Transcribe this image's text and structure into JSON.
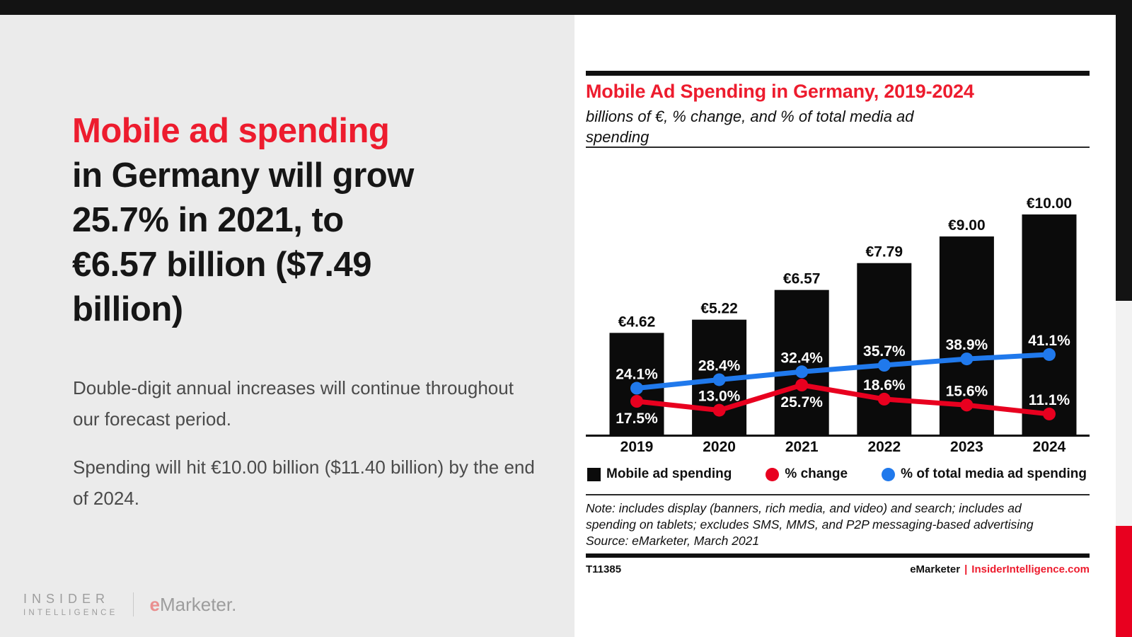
{
  "colors": {
    "accent_red": "#ed1c2e",
    "chart_red": "#e8001f",
    "chart_blue": "#2079ec",
    "bar_black": "#0b0b0b",
    "panel_gray": "#ebebeb"
  },
  "left_panel": {
    "headline_highlight": "Mobile ad spending",
    "headline_rest_lines": [
      "in Germany will grow",
      "25.7% in 2021, to",
      "€6.57 billion ($7.49",
      "billion)"
    ],
    "paragraphs": [
      "Double-digit annual increases will continue throughout our forecast period.",
      "Spending will hit €10.00 billion ($11.40 billion) by the end of 2024."
    ],
    "logo": {
      "insider": "INSIDER",
      "intelligence": "INTELLIGENCE",
      "emarketer_e": "e",
      "emarketer_rest": "Marketer."
    }
  },
  "chart_panel": {
    "title": "Mobile Ad Spending in Germany, 2019-2024",
    "subtitle": "billions of €, % change, and % of total media ad spending",
    "subtitle_lines": [
      "billions of €, % change, and % of total media ad",
      "spending"
    ],
    "legend": [
      {
        "label": "Mobile ad spending",
        "color": "#0b0b0b",
        "shape": "square"
      },
      {
        "label": "% change",
        "color": "#e8001f",
        "shape": "circle"
      },
      {
        "label": "% of total media ad spending",
        "color": "#2079ec",
        "shape": "circle"
      }
    ],
    "note_lines": [
      "Note: includes display (banners, rich media, and video) and search; includes ad",
      "spending on tablets; excludes SMS, MMS, and P2P messaging-based advertising",
      "Source: eMarketer, March 2021"
    ],
    "footer": {
      "chart_id": "T11385",
      "brand": "eMarketer",
      "divider": "|",
      "site": "InsiderIntelligence.com"
    }
  },
  "chart_data": {
    "type": "bar+line",
    "categories": [
      "2019",
      "2020",
      "2021",
      "2022",
      "2023",
      "2024"
    ],
    "series": [
      {
        "name": "Mobile ad spending",
        "type": "bar",
        "unit": "billions of €",
        "color": "#0b0b0b",
        "values": [
          4.62,
          5.22,
          6.57,
          7.79,
          9.0,
          10.0
        ],
        "labels": [
          "€4.62",
          "€5.22",
          "€6.57",
          "€7.79",
          "€9.00",
          "€10.00"
        ]
      },
      {
        "name": "% change",
        "type": "line",
        "color": "#e8001f",
        "values": [
          17.5,
          13.0,
          25.7,
          18.6,
          15.6,
          11.1
        ],
        "labels": [
          "17.5%",
          "13.0%",
          "25.7%",
          "18.6%",
          "15.6%",
          "11.1%"
        ],
        "label_pos": [
          "below",
          "above",
          "below",
          "above",
          "above",
          "above"
        ]
      },
      {
        "name": "% of total media ad spending",
        "type": "line",
        "color": "#2079ec",
        "values": [
          24.1,
          28.4,
          32.4,
          35.7,
          38.9,
          41.1
        ],
        "labels": [
          "24.1%",
          "28.4%",
          "32.4%",
          "35.7%",
          "38.9%",
          "41.1%"
        ],
        "label_pos": [
          "above",
          "above",
          "above",
          "above",
          "above",
          "above"
        ]
      }
    ],
    "ylim": [
      0,
      10
    ],
    "grid": false,
    "legend_position": "bottom"
  }
}
